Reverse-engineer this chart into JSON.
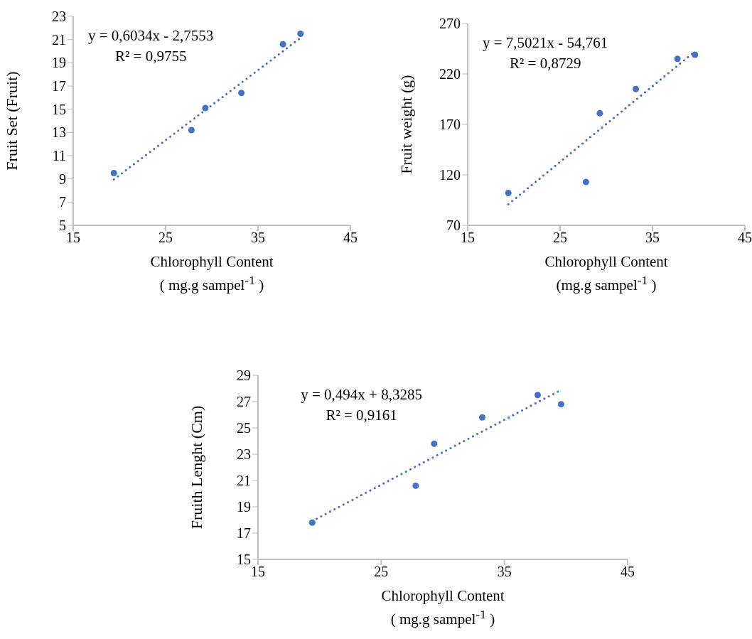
{
  "chart_data": [
    {
      "type": "scatter",
      "xlabel": "Chlorophyll Content\n( mg.g sampel$^{-1}$ )",
      "ylabel": "Fruit Set (Fruit)",
      "xlim": [
        15,
        45
      ],
      "xticks": [
        15,
        25,
        35,
        45
      ],
      "ylim": [
        5,
        23
      ],
      "yticks": [
        5,
        7,
        9,
        11,
        13,
        15,
        17,
        19,
        21,
        23
      ],
      "annotations": [
        "y = 0,6034x - 2,7553",
        "R² = 0,9755"
      ],
      "series": [
        {
          "type": "scatter",
          "marker": "circle",
          "color": "#4472c4",
          "x": [
            19.4,
            27.8,
            29.3,
            33.2,
            37.7,
            39.6
          ],
          "values": [
            9.5,
            13.2,
            15.1,
            16.4,
            20.6,
            21.5
          ]
        },
        {
          "type": "line",
          "marker": "none",
          "line_style": "dotted",
          "color": "#4472c4",
          "x": [
            19.4,
            39.6
          ],
          "values": [
            8.95,
            21.14
          ]
        }
      ]
    },
    {
      "type": "scatter",
      "xlabel": "Chlorophyll Content\n(mg.g sampel$^{-1}$ )",
      "ylabel": "Fruit weight (g)",
      "xlim": [
        15,
        45
      ],
      "xticks": [
        15,
        25,
        35,
        45
      ],
      "ylim": [
        70,
        270
      ],
      "yticks": [
        70,
        120,
        170,
        220,
        270
      ],
      "annotations": [
        "y = 7,5021x - 54,761",
        "R² = 0,8729"
      ],
      "series": [
        {
          "type": "scatter",
          "marker": "circle",
          "color": "#4472c4",
          "x": [
            19.4,
            27.8,
            29.3,
            33.2,
            37.7,
            39.6
          ],
          "values": [
            102,
            113,
            181,
            205,
            235,
            239
          ]
        },
        {
          "type": "line",
          "marker": "none",
          "line_style": "dotted",
          "color": "#4472c4",
          "x": [
            19.4,
            39.6
          ],
          "values": [
            90.8,
            242.3
          ]
        }
      ]
    },
    {
      "type": "scatter",
      "xlabel": "Chlorophyll Content\n( mg.g sampel$^{-1}$ )",
      "ylabel": "Fruith Lenght  (Cm)",
      "xlim": [
        15,
        45
      ],
      "xticks": [
        15,
        25,
        35,
        45
      ],
      "ylim": [
        15,
        29
      ],
      "yticks": [
        15,
        17,
        19,
        21,
        23,
        25,
        27,
        29
      ],
      "annotations": [
        "y = 0,494x + 8,3285",
        "R² = 0,9161"
      ],
      "series": [
        {
          "type": "scatter",
          "marker": "circle",
          "color": "#4472c4",
          "x": [
            19.4,
            27.8,
            29.3,
            33.2,
            37.7,
            39.6
          ],
          "values": [
            17.8,
            20.6,
            23.8,
            25.8,
            27.5,
            26.8
          ]
        },
        {
          "type": "line",
          "marker": "none",
          "line_style": "dotted",
          "color": "#4472c4",
          "x": [
            19.4,
            39.6
          ],
          "values": [
            17.91,
            27.89
          ]
        }
      ]
    }
  ]
}
